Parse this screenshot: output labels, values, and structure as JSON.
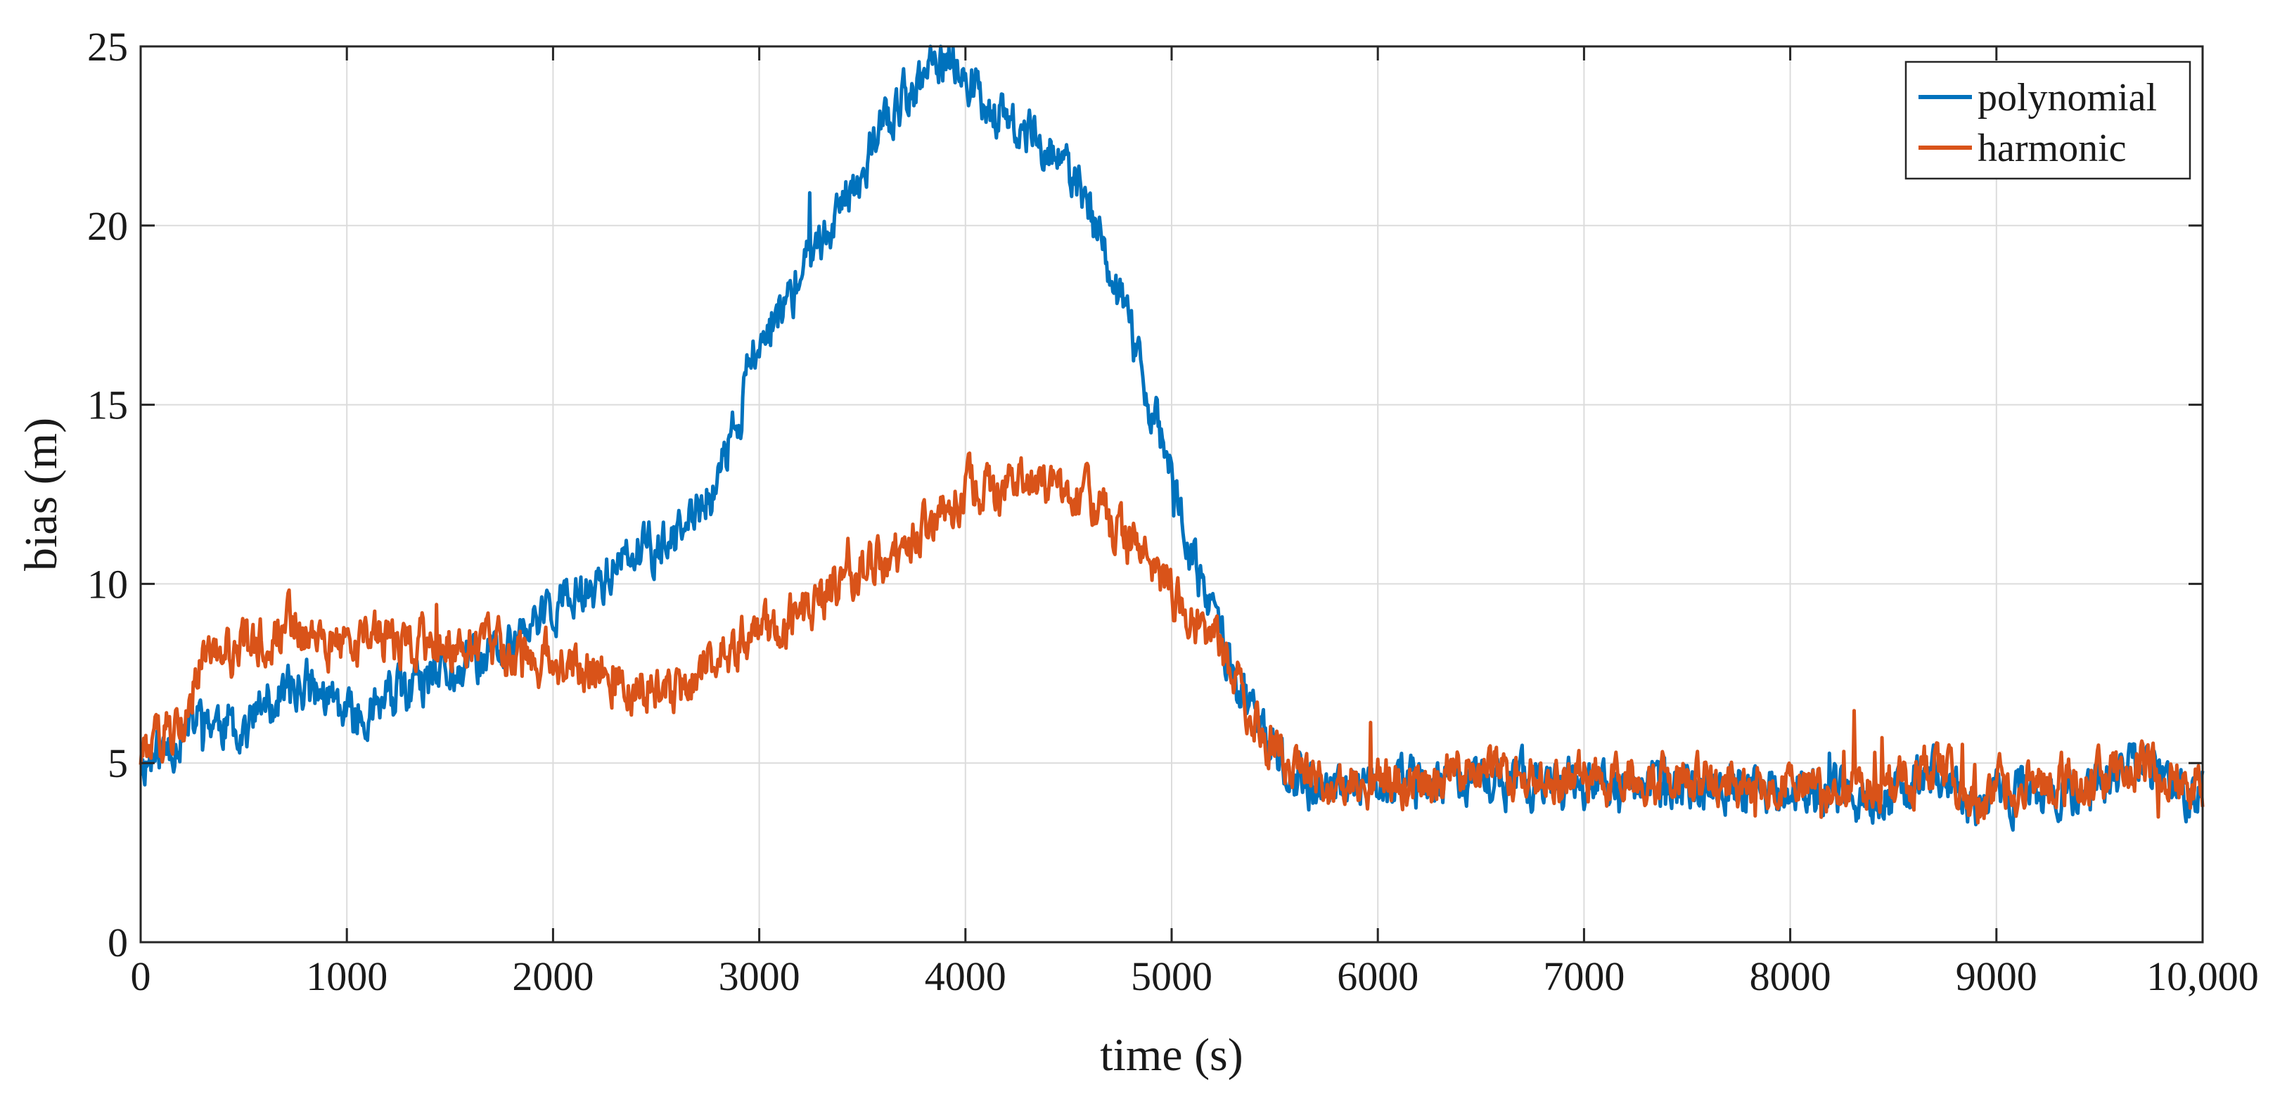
{
  "chart_data": {
    "type": "line",
    "xlabel": "time (s)",
    "ylabel": "bias (m)",
    "xlim": [
      0,
      10000
    ],
    "ylim": [
      0,
      25
    ],
    "x_ticks": [
      0,
      1000,
      2000,
      3000,
      4000,
      5000,
      6000,
      7000,
      8000,
      9000,
      10000
    ],
    "x_tick_labels": [
      "0",
      "1000",
      "2000",
      "3000",
      "4000",
      "5000",
      "6000",
      "7000",
      "8000",
      "9000",
      "10,000"
    ],
    "y_ticks": [
      0,
      5,
      10,
      15,
      20,
      25
    ],
    "y_tick_labels": [
      "0",
      "5",
      "10",
      "15",
      "20",
      "25"
    ],
    "grid": true,
    "legend_position": "top-right",
    "series": [
      {
        "name": "polynomial",
        "color": "#0072BD",
        "x": [
          0,
          100,
          200,
          300,
          400,
          500,
          600,
          700,
          800,
          900,
          1000,
          1200,
          1400,
          1600,
          1800,
          2000,
          2200,
          2400,
          2600,
          2800,
          3000,
          3200,
          3400,
          3600,
          3800,
          3950,
          4000,
          4200,
          4400,
          4600,
          4800,
          5000,
          5100,
          5200,
          5300,
          5400,
          5500,
          5600,
          5800,
          6000,
          6500,
          7000,
          7500,
          8000,
          8500,
          8700,
          8900,
          9000,
          9500,
          9700,
          10000
        ],
        "y": [
          5,
          5.3,
          5.8,
          6.3,
          6.1,
          6.0,
          6.5,
          7.0,
          7.2,
          6.8,
          6.2,
          6.8,
          7.2,
          7.8,
          8.3,
          9.3,
          10.0,
          10.8,
          11.2,
          12.8,
          16.8,
          18.5,
          20.5,
          22.8,
          24.2,
          24.6,
          24.2,
          22.8,
          22.3,
          20.5,
          17.0,
          13.0,
          10.5,
          9.3,
          7.5,
          6.2,
          5.2,
          4.6,
          4.2,
          4.3,
          4.5,
          4.4,
          4.3,
          4.2,
          4.0,
          4.8,
          3.6,
          4.1,
          4.4,
          4.9,
          4.1
        ]
      },
      {
        "name": "harmonic",
        "color": "#D95319",
        "x": [
          0,
          100,
          200,
          300,
          400,
          500,
          600,
          700,
          800,
          900,
          1000,
          1200,
          1400,
          1600,
          1800,
          2000,
          2200,
          2400,
          2600,
          2800,
          3000,
          3200,
          3400,
          3600,
          3800,
          3950,
          4000,
          4200,
          4400,
          4600,
          4800,
          5000,
          5100,
          5200,
          5300,
          5400,
          5500,
          5600,
          5800,
          6000,
          6500,
          7000,
          7500,
          8000,
          8500,
          8700,
          8900,
          9000,
          9500,
          9700,
          10000
        ],
        "y": [
          5.2,
          5.8,
          6.3,
          7.8,
          8.0,
          8.2,
          8.5,
          8.9,
          8.7,
          8.4,
          8.3,
          8.5,
          8.4,
          8.3,
          8.1,
          7.9,
          7.6,
          7.2,
          7.0,
          8.0,
          8.5,
          9.2,
          10.0,
          10.6,
          11.5,
          12.3,
          12.7,
          12.6,
          12.8,
          12.3,
          11.0,
          9.8,
          9.1,
          8.6,
          7.5,
          6.3,
          5.3,
          4.8,
          4.4,
          4.5,
          4.7,
          4.6,
          4.5,
          4.4,
          4.3,
          4.9,
          3.9,
          4.3,
          4.6,
          5.0,
          4.3
        ]
      }
    ]
  }
}
